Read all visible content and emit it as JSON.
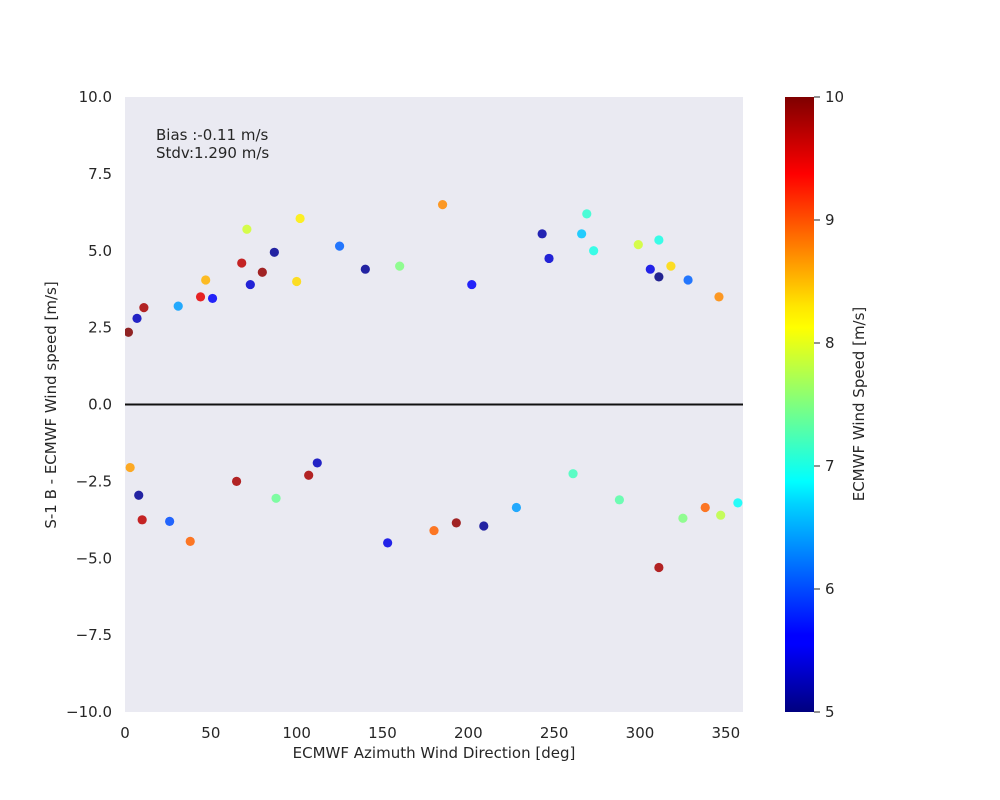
{
  "chart_data": {
    "type": "scatter",
    "title": "",
    "xlabel": "ECMWF Azimuth Wind Direction [deg]",
    "ylabel": "S-1 B - ECMWF Wind speed [m/s]",
    "xlim": [
      0,
      360
    ],
    "ylim": [
      -10,
      10
    ],
    "xticks": [
      "0",
      "50",
      "100",
      "150",
      "200",
      "250",
      "300",
      "350"
    ],
    "yticks": [
      "10.0",
      "7.5",
      "5.0",
      "2.5",
      "0.0",
      "−2.5",
      "−5.0",
      "−7.5",
      "−10.0"
    ],
    "annotation_lines": [
      "Bias :-0.11 m/s",
      "Stdv:1.290 m/s"
    ],
    "zero_line": 0,
    "background": "#eaeaf2",
    "grid": false,
    "colormap": "jet",
    "colorbar": {
      "label": "ECMWF Wind Speed [m/s]",
      "range": [
        5,
        10
      ],
      "ticks": [
        "5",
        "6",
        "7",
        "8",
        "9",
        "10"
      ]
    },
    "points": [
      {
        "x": 2,
        "y": 2.35,
        "c": 10.0
      },
      {
        "x": 7,
        "y": 2.8,
        "c": 5.3
      },
      {
        "x": 11,
        "y": 3.15,
        "c": 9.8
      },
      {
        "x": 8,
        "y": -2.95,
        "c": 5.1
      },
      {
        "x": 10,
        "y": -3.75,
        "c": 9.7
      },
      {
        "x": 3,
        "y": -2.05,
        "c": 8.6
      },
      {
        "x": 38,
        "y": -4.45,
        "c": 8.9
      },
      {
        "x": 26,
        "y": -3.8,
        "c": 6.0
      },
      {
        "x": 31,
        "y": 3.2,
        "c": 6.4
      },
      {
        "x": 44,
        "y": 3.5,
        "c": 9.5
      },
      {
        "x": 47,
        "y": 4.05,
        "c": 8.5
      },
      {
        "x": 51,
        "y": 3.45,
        "c": 5.6
      },
      {
        "x": 68,
        "y": 4.6,
        "c": 9.7
      },
      {
        "x": 71,
        "y": 5.7,
        "c": 7.9
      },
      {
        "x": 73,
        "y": 3.9,
        "c": 5.4
      },
      {
        "x": 80,
        "y": 4.3,
        "c": 9.9
      },
      {
        "x": 87,
        "y": 4.95,
        "c": 5.1
      },
      {
        "x": 102,
        "y": 6.05,
        "c": 8.2
      },
      {
        "x": 100,
        "y": 4.0,
        "c": 8.3
      },
      {
        "x": 125,
        "y": 5.15,
        "c": 6.1
      },
      {
        "x": 140,
        "y": 4.4,
        "c": 5.1
      },
      {
        "x": 160,
        "y": 4.5,
        "c": 7.5
      },
      {
        "x": 185,
        "y": 6.5,
        "c": 8.7
      },
      {
        "x": 202,
        "y": 3.9,
        "c": 5.6
      },
      {
        "x": 243,
        "y": 5.55,
        "c": 5.2
      },
      {
        "x": 247,
        "y": 4.75,
        "c": 5.4
      },
      {
        "x": 269,
        "y": 6.2,
        "c": 7.1
      },
      {
        "x": 266,
        "y": 5.55,
        "c": 6.6
      },
      {
        "x": 273,
        "y": 5.0,
        "c": 7.0
      },
      {
        "x": 299,
        "y": 5.2,
        "c": 7.9
      },
      {
        "x": 306,
        "y": 4.4,
        "c": 5.5
      },
      {
        "x": 311,
        "y": 5.35,
        "c": 7.0
      },
      {
        "x": 318,
        "y": 4.5,
        "c": 8.3
      },
      {
        "x": 328,
        "y": 4.05,
        "c": 6.1
      },
      {
        "x": 311,
        "y": 4.15,
        "c": 5.0
      },
      {
        "x": 346,
        "y": 3.5,
        "c": 8.7
      },
      {
        "x": 311,
        "y": -5.3,
        "c": 9.8
      },
      {
        "x": 325,
        "y": -3.7,
        "c": 7.5
      },
      {
        "x": 153,
        "y": -4.5,
        "c": 5.5
      },
      {
        "x": 209,
        "y": -3.95,
        "c": 5.1
      },
      {
        "x": 193,
        "y": -3.85,
        "c": 9.9
      },
      {
        "x": 180,
        "y": -4.1,
        "c": 8.9
      },
      {
        "x": 112,
        "y": -1.9,
        "c": 5.3
      },
      {
        "x": 107,
        "y": -2.3,
        "c": 9.8
      },
      {
        "x": 88,
        "y": -3.05,
        "c": 7.4
      },
      {
        "x": 65,
        "y": -2.5,
        "c": 9.8
      },
      {
        "x": 228,
        "y": -3.35,
        "c": 6.4
      },
      {
        "x": 261,
        "y": -2.25,
        "c": 7.2
      },
      {
        "x": 288,
        "y": -3.1,
        "c": 7.3
      },
      {
        "x": 347,
        "y": -3.6,
        "c": 7.8
      },
      {
        "x": 357,
        "y": -3.2,
        "c": 6.9
      },
      {
        "x": 338,
        "y": -3.35,
        "c": 8.9
      }
    ]
  }
}
